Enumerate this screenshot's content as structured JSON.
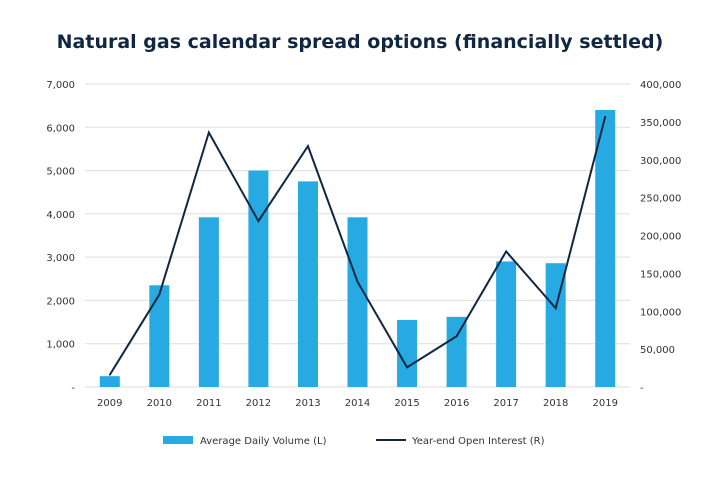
{
  "chart_data": {
    "type": "bar+line",
    "title": "Natural gas calendar spread options (financially settled)",
    "categories": [
      "2009",
      "2010",
      "2011",
      "2012",
      "2013",
      "2014",
      "2015",
      "2016",
      "2017",
      "2018",
      "2019"
    ],
    "series": [
      {
        "name": "Average Daily Volume (L)",
        "type": "bar",
        "axis": "left",
        "values": [
          250,
          2350,
          3920,
          5000,
          4750,
          3920,
          1550,
          1620,
          2900,
          2860,
          6400
        ]
      },
      {
        "name": "Year-end Open Interest (R)",
        "type": "line",
        "axis": "right",
        "values": [
          16000,
          122000,
          336000,
          219000,
          318000,
          139000,
          26000,
          67000,
          179000,
          104000,
          357000
        ]
      }
    ],
    "left_axis": {
      "ylim": [
        0,
        7000
      ],
      "ticks": [
        "-",
        "1,000",
        "2,000",
        "3,000",
        "4,000",
        "5,000",
        "6,000",
        "7,000"
      ]
    },
    "right_axis": {
      "ylim": [
        0,
        400000
      ],
      "ticks": [
        "-",
        "50,000",
        "100,000",
        "150,000",
        "200,000",
        "250,000",
        "300,000",
        "350,000",
        "400,000"
      ]
    },
    "grid": true,
    "legend_position": "bottom",
    "colors": {
      "bar": "#27a9e1",
      "line": "#0f2742",
      "grid": "#dddddd",
      "text": "#333333",
      "title": "#0f2742"
    }
  }
}
